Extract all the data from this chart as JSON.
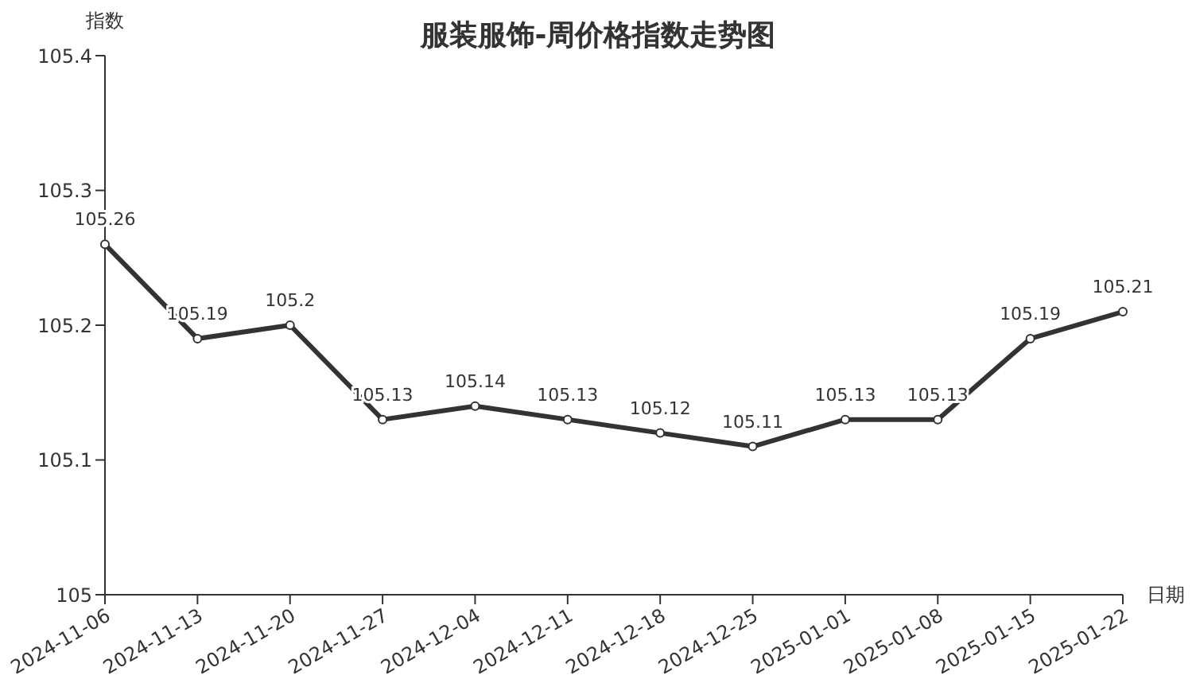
{
  "chart_data": {
    "type": "line",
    "title": "服装服饰-周价格指数走势图",
    "xlabel": "日期",
    "ylabel": "指数",
    "categories": [
      "2024-11-06",
      "2024-11-13",
      "2024-11-20",
      "2024-11-27",
      "2024-12-04",
      "2024-12-11",
      "2024-12-18",
      "2024-12-25",
      "2025-01-01",
      "2025-01-08",
      "2025-01-15",
      "2025-01-22"
    ],
    "values": [
      105.26,
      105.19,
      105.2,
      105.13,
      105.14,
      105.13,
      105.12,
      105.11,
      105.13,
      105.13,
      105.19,
      105.21
    ],
    "color": "#333333",
    "ylim": [
      105,
      105.4
    ],
    "yticks": [
      105,
      105.1,
      105.2,
      105.3,
      105.4
    ],
    "data_labels": true,
    "marker": "circle",
    "line_style": "solid"
  }
}
